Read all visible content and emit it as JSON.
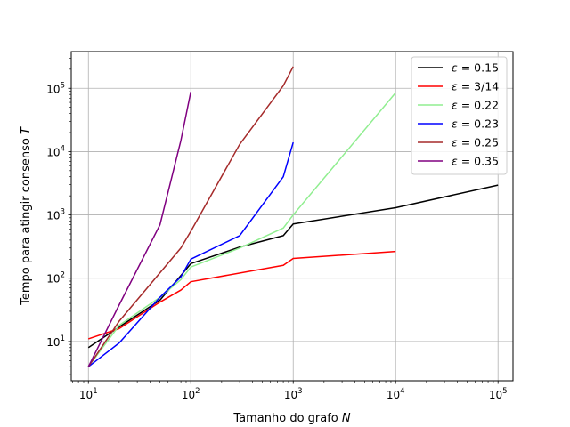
{
  "chart_data": {
    "type": "line",
    "xlabel_main": "Tamanho do grafo ",
    "xlabel_var": "N",
    "ylabel_main": "Tempo para atingir consenso ",
    "ylabel_var": "T",
    "xscale": "log",
    "yscale": "log",
    "xlim": [
      6.8,
      140000
    ],
    "ylim": [
      2.4,
      380000
    ],
    "x_ticks": [
      {
        "value": 10,
        "base": "10",
        "exp": "1"
      },
      {
        "value": 100,
        "base": "10",
        "exp": "2"
      },
      {
        "value": 1000,
        "base": "10",
        "exp": "3"
      },
      {
        "value": 10000,
        "base": "10",
        "exp": "4"
      },
      {
        "value": 100000,
        "base": "10",
        "exp": "5"
      }
    ],
    "y_ticks": [
      {
        "value": 10,
        "base": "10",
        "exp": "1"
      },
      {
        "value": 100,
        "base": "10",
        "exp": "2"
      },
      {
        "value": 1000,
        "base": "10",
        "exp": "3"
      },
      {
        "value": 10000,
        "base": "10",
        "exp": "4"
      },
      {
        "value": 100000,
        "base": "10",
        "exp": "5"
      }
    ],
    "grid": true,
    "legend_position": "top-right",
    "series": [
      {
        "name": "0.15",
        "color": "#000000",
        "x": [
          10,
          20,
          50,
          80,
          100,
          300,
          800,
          1000,
          10000,
          100000
        ],
        "y": [
          8,
          17,
          45,
          110,
          170,
          310,
          470,
          720,
          1300,
          2950
        ]
      },
      {
        "name": "3/14",
        "color": "#ff0000",
        "x": [
          10,
          20,
          50,
          80,
          100,
          800,
          1000,
          10000
        ],
        "y": [
          11,
          16,
          42,
          65,
          88,
          160,
          205,
          265
        ]
      },
      {
        "name": "0.22",
        "color": "#90ee90",
        "x": [
          10,
          20,
          50,
          80,
          100,
          300,
          800,
          1000,
          10000
        ],
        "y": [
          4,
          18,
          50,
          95,
          150,
          300,
          620,
          1000,
          85000
        ]
      },
      {
        "name": "0.23",
        "color": "#0000ff",
        "x": [
          10,
          20,
          50,
          80,
          100,
          300,
          800,
          1000
        ],
        "y": [
          4,
          9.5,
          50,
          105,
          200,
          470,
          4000,
          14000
        ]
      },
      {
        "name": "0.25",
        "color": "#a52a2a",
        "x": [
          10,
          20,
          80,
          100,
          300,
          800,
          1000
        ],
        "y": [
          4,
          21,
          300,
          550,
          13000,
          110000,
          220000
        ]
      },
      {
        "name": "0.35",
        "color": "#800080",
        "x": [
          10,
          20,
          50,
          80,
          100
        ],
        "y": [
          4,
          38,
          700,
          15000,
          88000
        ]
      }
    ],
    "legend_symbol": "ε",
    "legend_equals": " = "
  }
}
